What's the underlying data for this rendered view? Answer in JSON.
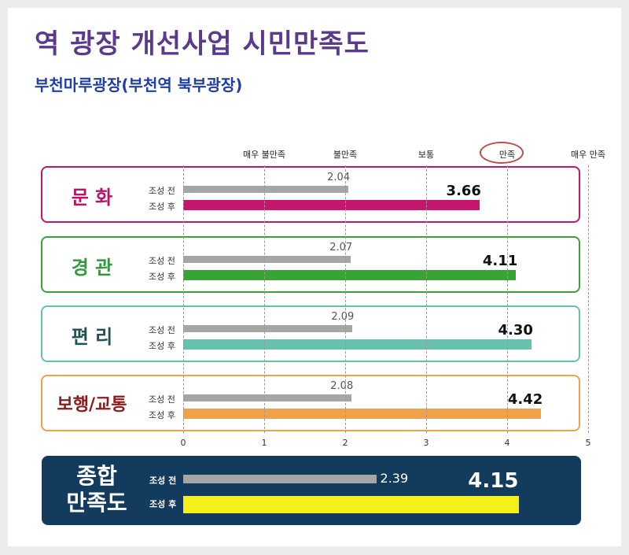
{
  "title": "역 광장 개선사업 시민만족도",
  "subtitle": "부천마루광장(부천역 북부광장)",
  "chart_data": {
    "type": "bar",
    "orientation": "horizontal",
    "categories": [
      "문 화",
      "경 관",
      "편 리",
      "보행/교통"
    ],
    "series": [
      {
        "name": "조성 전",
        "values": [
          2.04,
          2.07,
          2.09,
          2.08
        ],
        "labels": [
          "2.04",
          "2.07",
          "2.09",
          "2.08"
        ]
      },
      {
        "name": "조성 후",
        "values": [
          3.66,
          4.11,
          4.3,
          4.42
        ],
        "labels": [
          "3.66",
          "4.11",
          "4.30",
          "4.42"
        ]
      }
    ],
    "xlim": [
      0,
      5
    ],
    "ticks": [
      "0",
      "1",
      "2",
      "3",
      "4",
      "5"
    ],
    "scale_labels": [
      "매우 불만족",
      "불만족",
      "보통",
      "만족",
      "매우 만족"
    ],
    "category_colors": [
      "#c5166e",
      "#3aa335",
      "#66c2ad",
      "#f0a24a"
    ],
    "category_text_colors": [
      "#b81468",
      "#2e9a3a",
      "#1f5252",
      "#8c1c1c"
    ],
    "before_color": "#a6a6a6",
    "grid": true,
    "summary": {
      "label_line1": "종합",
      "label_line2": "만족도",
      "series": [
        {
          "name": "조성 전",
          "value": 2.39,
          "label": "2.39"
        },
        {
          "name": "조성 후",
          "value": 4.15,
          "label": "4.15"
        }
      ],
      "after_color": "#f5f019",
      "before_color": "#a6a6a6",
      "background": "#123b5e"
    }
  }
}
